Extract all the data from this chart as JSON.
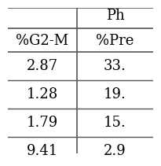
{
  "header_top": "Ph",
  "col_headers": [
    "%G2-M",
    "%Pre"
  ],
  "rows": [
    [
      "2.87",
      "33."
    ],
    [
      "1.28",
      "19."
    ],
    [
      "1.79",
      "15."
    ],
    [
      "9.41",
      "2.9"
    ]
  ],
  "bg_color": "#ffffff",
  "line_color": "#555555",
  "text_color": "#000000",
  "header_fontsize": 13,
  "cell_fontsize": 13
}
